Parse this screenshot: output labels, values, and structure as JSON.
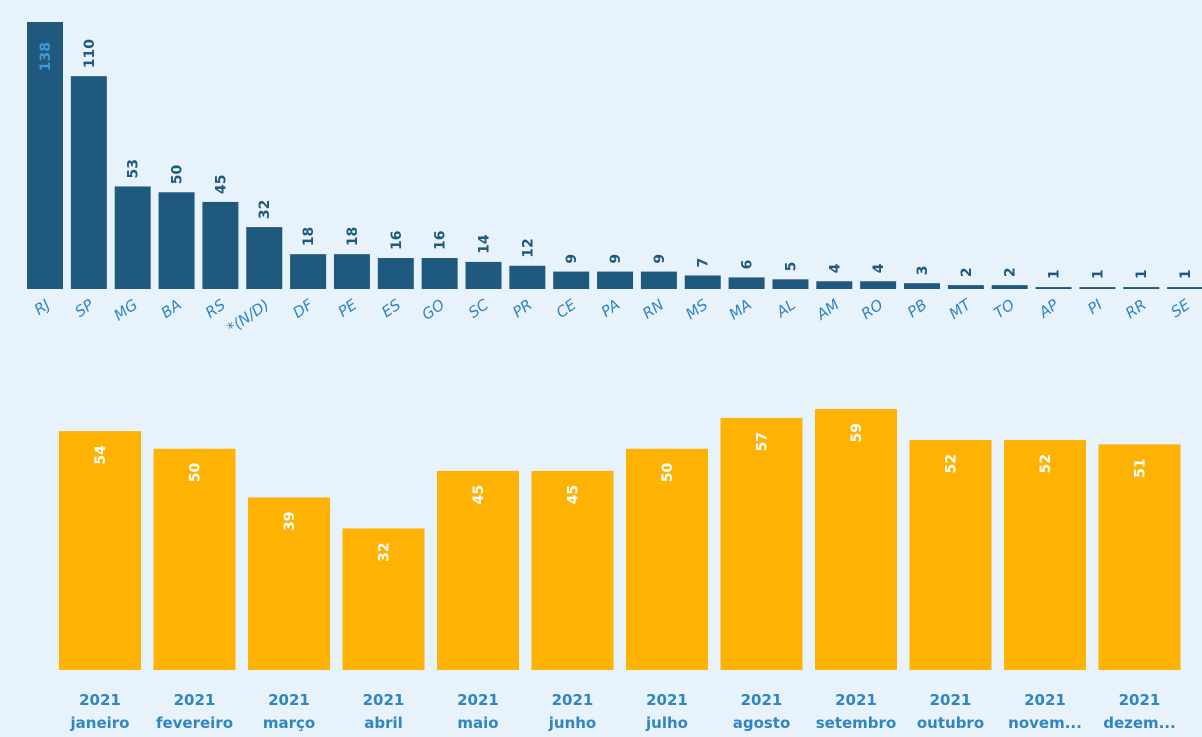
{
  "chart_data": [
    {
      "type": "bar",
      "title": "",
      "xlabel": "",
      "ylabel": "",
      "bar_color": "#1f5a7e",
      "label_color": "#1f5a7e",
      "first_label_color": "#3a9bd5",
      "axis_label_color": "#2f86c0",
      "categories": [
        "RJ",
        "SP",
        "MG",
        "BA",
        "RS",
        "*(N/D)",
        "DF",
        "PE",
        "ES",
        "GO",
        "SC",
        "PR",
        "CE",
        "PA",
        "RN",
        "MS",
        "MA",
        "AL",
        "AM",
        "RO",
        "PB",
        "MT",
        "TO",
        "AP",
        "PI",
        "RR",
        "SE"
      ],
      "values": [
        138,
        110,
        53,
        50,
        45,
        32,
        18,
        18,
        16,
        16,
        14,
        12,
        9,
        9,
        9,
        7,
        6,
        5,
        4,
        4,
        3,
        2,
        2,
        1,
        1,
        1,
        1
      ],
      "ylim": [
        0,
        138
      ]
    },
    {
      "type": "bar",
      "title": "",
      "xlabel": "",
      "ylabel": "",
      "bar_color": "#fdb204",
      "label_color": "#ffffff",
      "axis_label_color": "#2f86c0",
      "categories": [
        [
          "2021",
          "janeiro"
        ],
        [
          "2021",
          "fevereiro"
        ],
        [
          "2021",
          "março"
        ],
        [
          "2021",
          "abril"
        ],
        [
          "2021",
          "maio"
        ],
        [
          "2021",
          "junho"
        ],
        [
          "2021",
          "julho"
        ],
        [
          "2021",
          "agosto"
        ],
        [
          "2021",
          "setembro"
        ],
        [
          "2021",
          "outubro"
        ],
        [
          "2021",
          "novem..."
        ],
        [
          "2021",
          "dezem..."
        ]
      ],
      "values": [
        54,
        50,
        39,
        32,
        45,
        45,
        50,
        57,
        59,
        52,
        52,
        51
      ],
      "ylim": [
        0,
        59
      ]
    }
  ]
}
